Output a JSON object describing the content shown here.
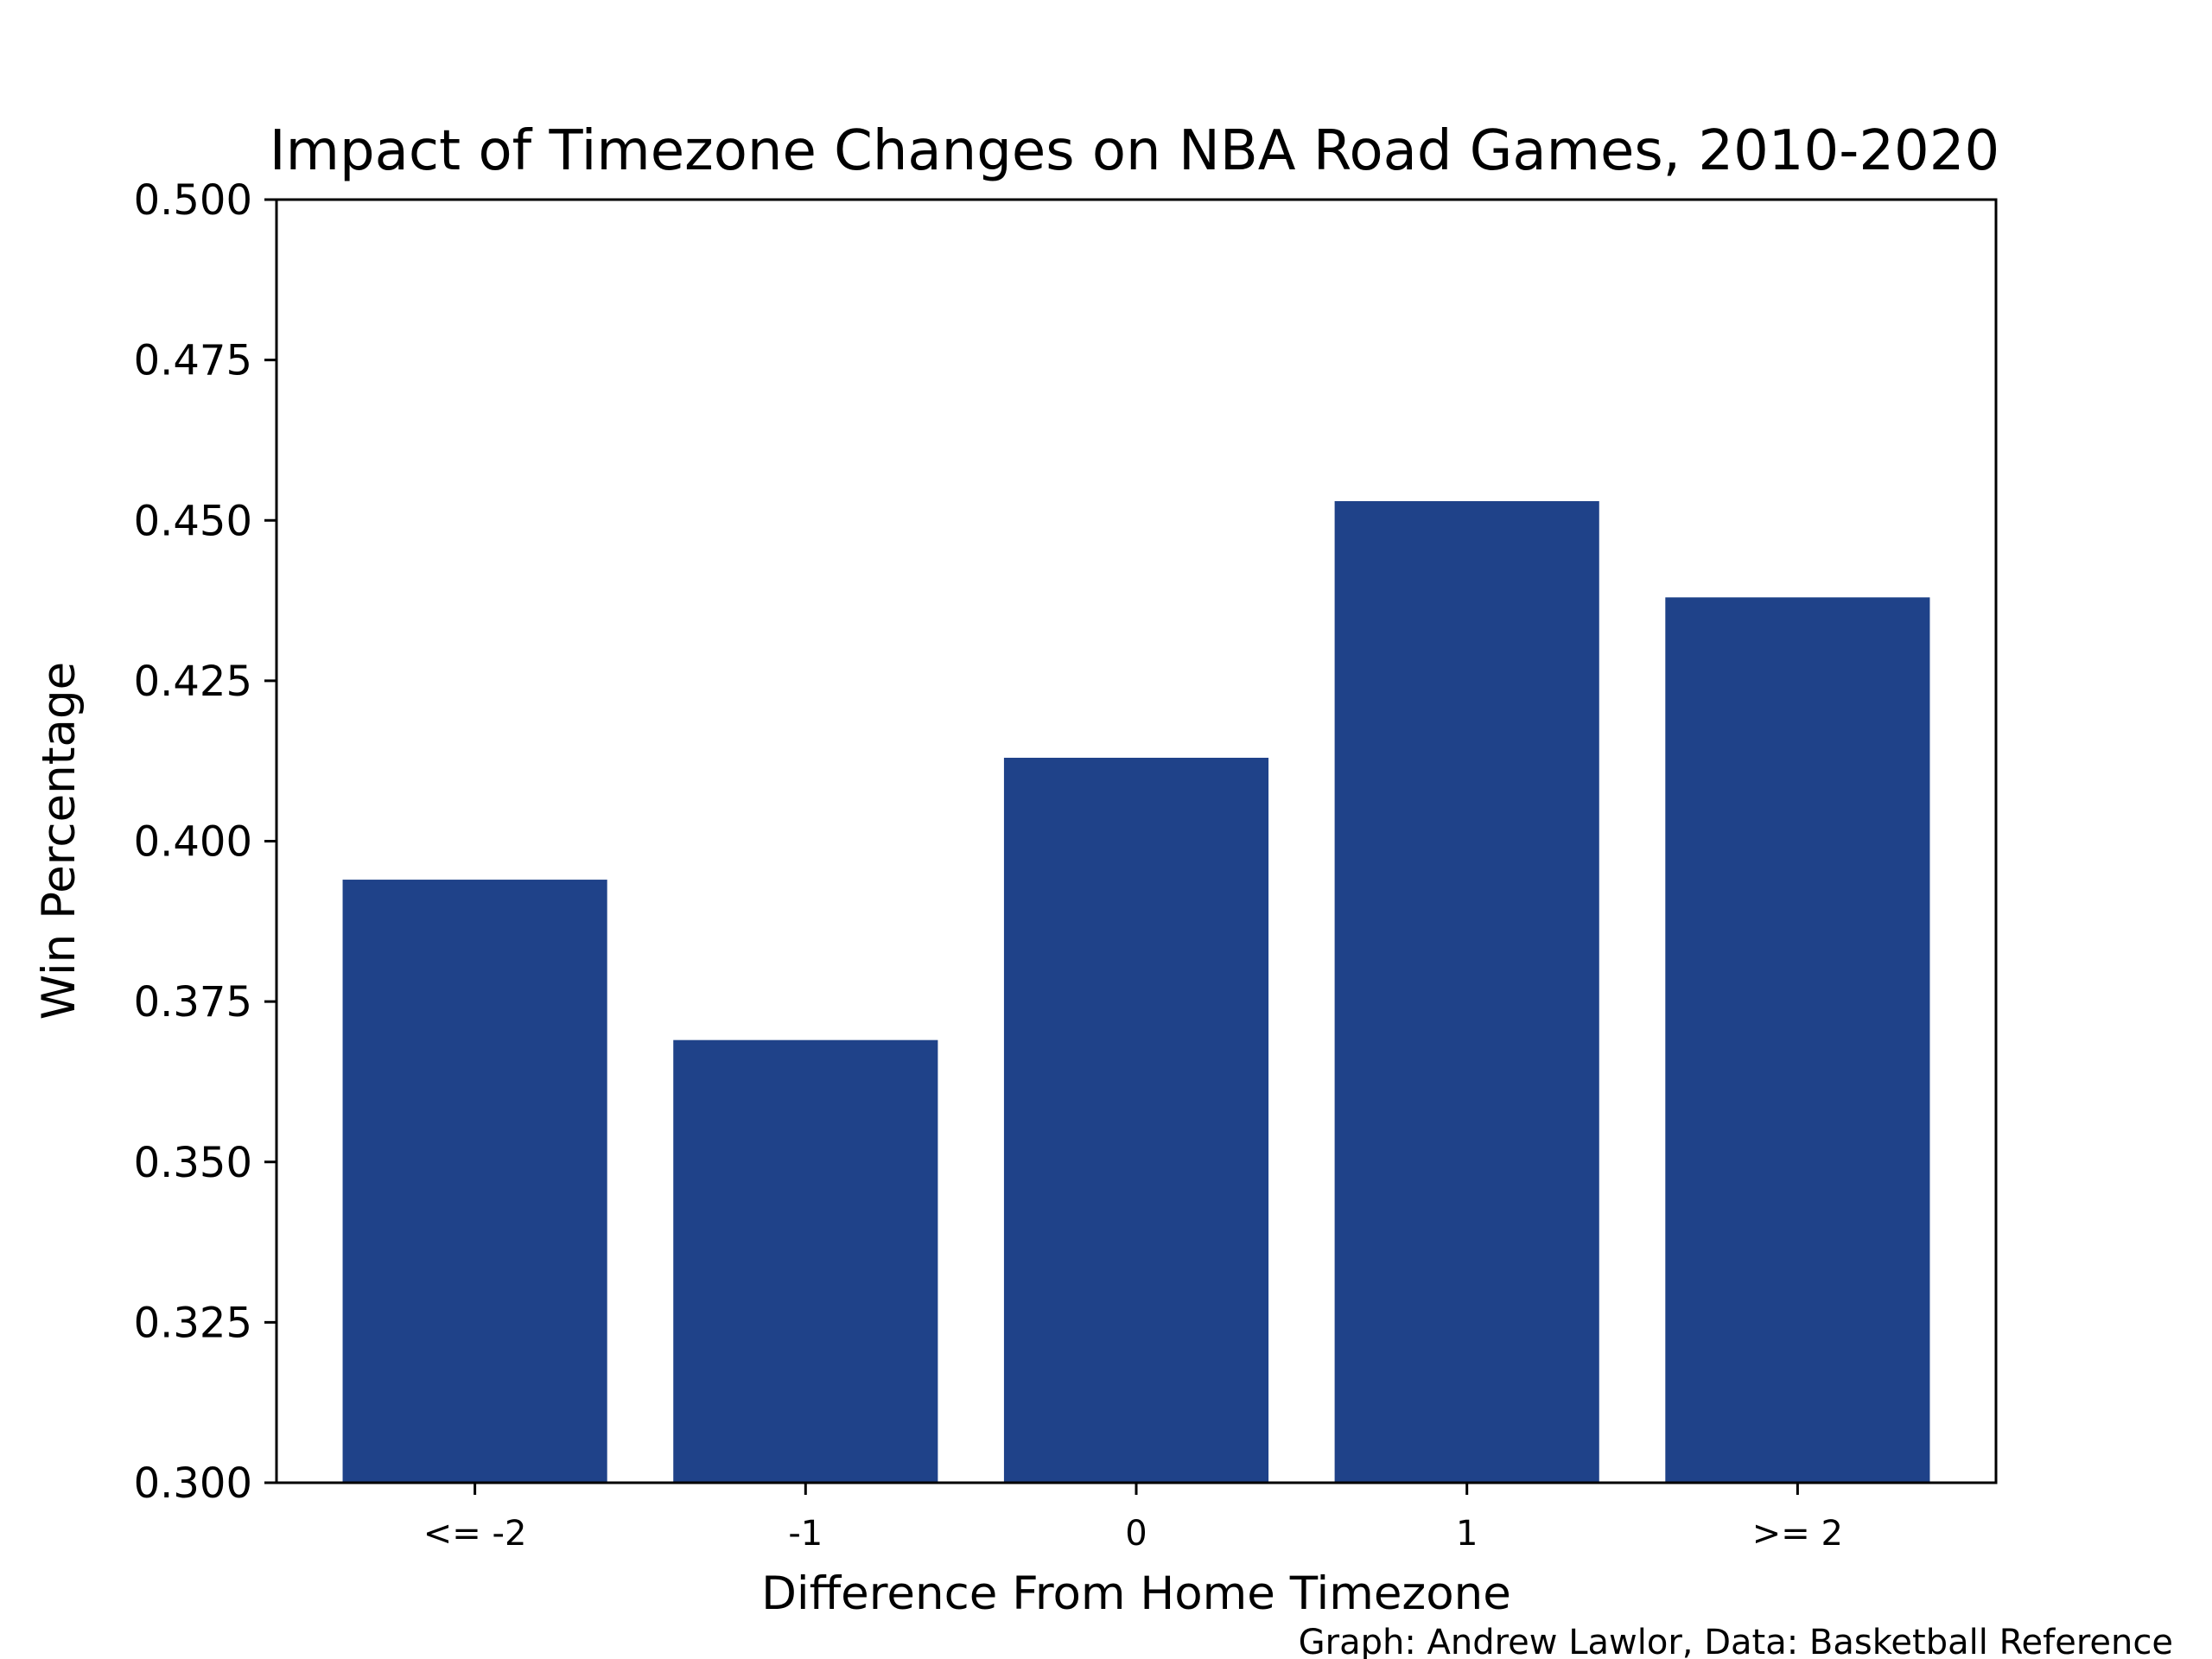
{
  "chart_data": {
    "type": "bar",
    "title": "Impact of Timezone Changes on NBA Road Games, 2010-2020",
    "xlabel": "Difference From Home Timezone",
    "ylabel": "Win Percentage",
    "categories": [
      "<= -2",
      "-1",
      "0",
      "1",
      ">= 2"
    ],
    "values": [
      0.394,
      0.369,
      0.413,
      0.453,
      0.438
    ],
    "ylim": [
      0.3,
      0.5
    ],
    "yticks": [
      "0.300",
      "0.325",
      "0.350",
      "0.375",
      "0.400",
      "0.425",
      "0.450",
      "0.475",
      "0.500"
    ],
    "grid": false,
    "bar_color": "#1f4289",
    "credit": "Graph: Andrew Lawlor, Data: Basketball Reference"
  }
}
